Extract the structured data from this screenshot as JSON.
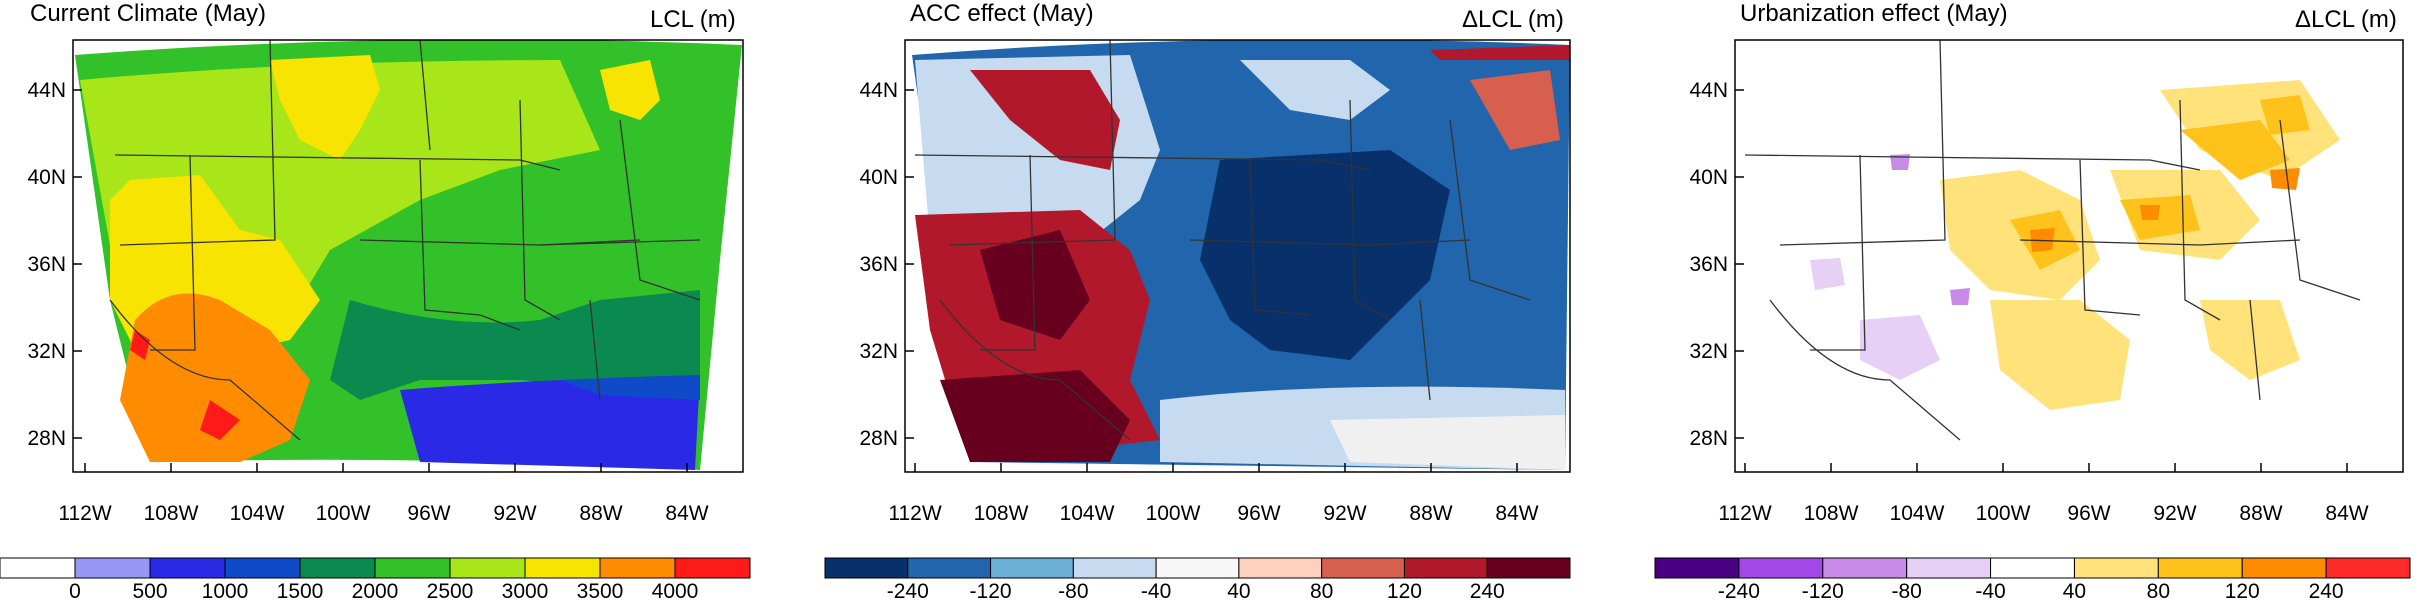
{
  "panels": [
    {
      "title": "Current Climate (May)",
      "units": "LCL (m)",
      "lat_labels": [
        "44N",
        "40N",
        "36N",
        "32N",
        "28N"
      ],
      "lon_labels": [
        "112W",
        "108W",
        "104W",
        "100W",
        "96W",
        "92W",
        "88W",
        "84W"
      ],
      "colorbar": {
        "colors": [
          "#ffffff",
          "#9797f5",
          "#2a2ae6",
          "#0f4bc8",
          "#0a8a4e",
          "#33c12a",
          "#a8e619",
          "#f7e400",
          "#ff8c00",
          "#ff1a1a"
        ],
        "labels": [
          "0",
          "500",
          "1000",
          "1500",
          "2000",
          "2500",
          "3000",
          "3500",
          "4000"
        ]
      }
    },
    {
      "title": "ACC effect (May)",
      "units": "ΔLCL (m)",
      "lat_labels": [
        "44N",
        "40N",
        "36N",
        "32N",
        "28N"
      ],
      "lon_labels": [
        "112W",
        "108W",
        "104W",
        "100W",
        "96W",
        "92W",
        "88W",
        "84W"
      ],
      "colorbar": {
        "colors": [
          "#08306b",
          "#2166ac",
          "#6baed6",
          "#c6dbef",
          "#f7f7f7",
          "#fdd0c0",
          "#d6604d",
          "#b2182b",
          "#67001f"
        ],
        "labels": [
          "-240",
          "-120",
          "-80",
          "-40",
          "40",
          "80",
          "120",
          "240"
        ]
      }
    },
    {
      "title": "Urbanization effect (May)",
      "units": "ΔLCL (m)",
      "lat_labels": [
        "44N",
        "40N",
        "36N",
        "32N",
        "28N"
      ],
      "lon_labels": [
        "112W",
        "108W",
        "104W",
        "100W",
        "96W",
        "92W",
        "88W",
        "84W"
      ],
      "colorbar": {
        "colors": [
          "#4b0082",
          "#a347e6",
          "#c88be8",
          "#e6d0f5",
          "#ffffff",
          "#ffe27a",
          "#ffc21a",
          "#ff8c00",
          "#ff2a2a"
        ],
        "labels": [
          "-240",
          "-120",
          "-80",
          "-40",
          "40",
          "80",
          "120",
          "240"
        ]
      }
    }
  ]
}
